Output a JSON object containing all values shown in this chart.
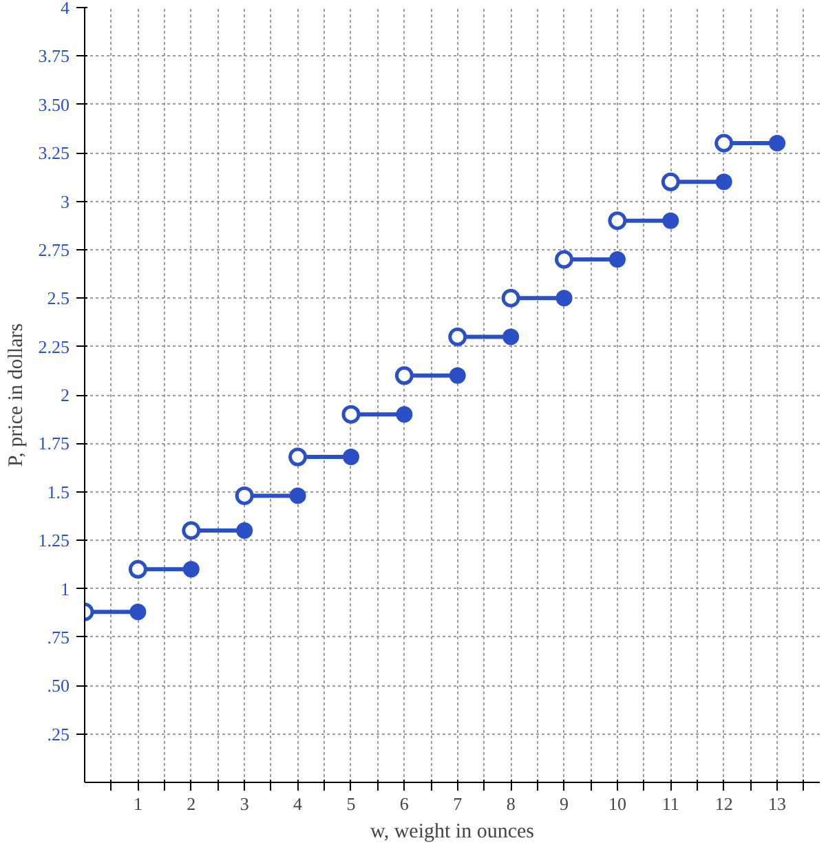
{
  "chart_data": {
    "type": "line",
    "xlabel": "w, weight in ounces",
    "ylabel": "P, price in dollars",
    "series": [
      {
        "color": "#2b4fc4",
        "x": [
          0,
          1
        ],
        "values": [
          0.88,
          0.88
        ]
      },
      {
        "color": "#2b4fc4",
        "x": [
          1,
          2
        ],
        "values": [
          1.1,
          1.1
        ]
      },
      {
        "color": "#2b4fc4",
        "x": [
          2,
          3
        ],
        "values": [
          1.3,
          1.3
        ]
      },
      {
        "color": "#2b4fc4",
        "x": [
          3,
          4
        ],
        "values": [
          1.48,
          1.48
        ]
      },
      {
        "color": "#2b4fc4",
        "x": [
          4,
          5
        ],
        "values": [
          1.68,
          1.68
        ]
      },
      {
        "color": "#2b4fc4",
        "x": [
          5,
          6
        ],
        "values": [
          1.9,
          1.9
        ]
      },
      {
        "color": "#2b4fc4",
        "x": [
          6,
          7
        ],
        "values": [
          2.1,
          2.1
        ]
      },
      {
        "color": "#2b4fc4",
        "x": [
          7,
          8
        ],
        "values": [
          2.3,
          2.3
        ]
      },
      {
        "color": "#2b4fc4",
        "x": [
          8,
          9
        ],
        "values": [
          2.5,
          2.5
        ]
      },
      {
        "color": "#2b4fc4",
        "x": [
          9,
          10
        ],
        "values": [
          2.7,
          2.7
        ]
      },
      {
        "color": "#2b4fc4",
        "x": [
          10,
          11
        ],
        "values": [
          2.9,
          2.9
        ]
      },
      {
        "color": "#2b4fc4",
        "x": [
          11,
          12
        ],
        "values": [
          3.1,
          3.1
        ]
      },
      {
        "color": "#2b4fc4",
        "x": [
          12,
          13
        ],
        "values": [
          3.3,
          3.3
        ]
      }
    ],
    "xlim": [
      0,
      13.8
    ],
    "ylim": [
      0,
      4
    ],
    "xticks": [
      {
        "value": 0.5,
        "label": null
      },
      1,
      {
        "value": 1.5,
        "label": null
      },
      2,
      {
        "value": 2.5,
        "label": null
      },
      3,
      {
        "value": 3.5,
        "label": null
      },
      4,
      {
        "value": 4.5,
        "label": null
      },
      5,
      {
        "value": 5.5,
        "label": null
      },
      6,
      {
        "value": 6.5,
        "label": null
      },
      7,
      {
        "value": 7.5,
        "label": null
      },
      8,
      {
        "value": 8.5,
        "label": null
      },
      9,
      {
        "value": 9.5,
        "label": null
      },
      10,
      {
        "value": 10.5,
        "label": null
      },
      11,
      {
        "value": 11.5,
        "label": null
      },
      12,
      {
        "value": 12.5,
        "label": null
      },
      13,
      {
        "value": 13.5,
        "label": null
      }
    ],
    "yticks": [
      {
        "value": 0.25,
        "label": ".25"
      },
      {
        "value": 0.5,
        "label": ".50"
      },
      {
        "value": 0.75,
        "label": ".75"
      },
      1,
      {
        "value": 1.25,
        "label": "1.25"
      },
      {
        "value": 1.5,
        "label": "1.5"
      },
      {
        "value": 1.75,
        "label": "1.75"
      },
      2,
      {
        "value": 2.25,
        "label": "2.25"
      },
      {
        "value": 2.5,
        "label": "2.5"
      },
      {
        "value": 2.75,
        "label": "2.75"
      },
      3,
      {
        "value": 3.25,
        "label": "3.25"
      },
      {
        "value": 3.5,
        "label": "3.50"
      },
      {
        "value": 3.75,
        "label": "3.75"
      },
      4
    ],
    "grid": true,
    "marker": "circle"
  }
}
